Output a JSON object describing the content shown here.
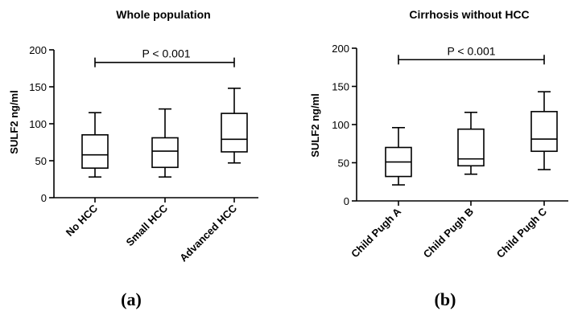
{
  "chart_data": [
    {
      "type": "box",
      "panel_label": "(a)",
      "title": "Whole population",
      "ylabel": "SULF2 ng/ml",
      "xlabel": "",
      "ylim": [
        0,
        200
      ],
      "yticks": [
        "0",
        "50",
        "100",
        "150",
        "200"
      ],
      "categories": [
        "No HCC",
        "Small  HCC",
        "Advanced  HCC"
      ],
      "boxes": [
        {
          "min": 28,
          "q1": 40,
          "median": 58,
          "q3": 85,
          "max": 115
        },
        {
          "min": 28,
          "q1": 41,
          "median": 63,
          "q3": 81,
          "max": 120
        },
        {
          "min": 47,
          "q1": 62,
          "median": 79,
          "q3": 114,
          "max": 148
        }
      ],
      "significance": {
        "text": "P < 0.001",
        "from": 0,
        "to": 2,
        "y": 183
      }
    },
    {
      "type": "box",
      "panel_label": "(b)",
      "title": "Cirrhosis without HCC",
      "ylabel": "SULF2 ng/ml",
      "xlabel": "",
      "ylim": [
        0,
        200
      ],
      "yticks": [
        "0",
        "50",
        "100",
        "150",
        "200"
      ],
      "categories": [
        "Child Pugh A",
        "Child Pugh B",
        "Child Pugh C"
      ],
      "boxes": [
        {
          "min": 21,
          "q1": 32,
          "median": 51,
          "q3": 70,
          "max": 96
        },
        {
          "min": 35,
          "q1": 46,
          "median": 55,
          "q3": 94,
          "max": 116
        },
        {
          "min": 41,
          "q1": 65,
          "median": 81,
          "q3": 117,
          "max": 143
        }
      ],
      "significance": {
        "text": "P < 0.001",
        "from": 0,
        "to": 2,
        "y": 185
      }
    }
  ]
}
